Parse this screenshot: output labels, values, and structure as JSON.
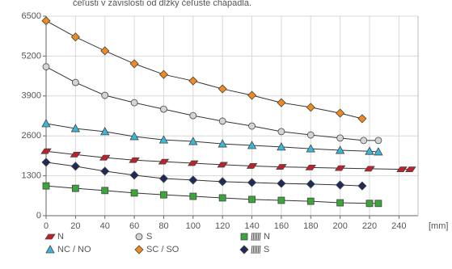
{
  "chart_data": {
    "type": "line",
    "title": "čeľusti v závislosti od dĺžky čeľuste chápadla.",
    "x_unit": "[mm]",
    "xlim": [
      0,
      253
    ],
    "xticks": [
      0,
      20,
      40,
      60,
      80,
      100,
      120,
      140,
      160,
      180,
      200,
      220,
      240
    ],
    "ylim": [
      0,
      6500
    ],
    "yticks": [
      0,
      1300,
      2600,
      3900,
      5200,
      6500
    ],
    "grid": true,
    "line_color": "#333333",
    "series": [
      {
        "name": "N",
        "color": "#c0202a",
        "marker": "parallelogram",
        "spring": false,
        "x": [
          0,
          20,
          40,
          60,
          80,
          100,
          120,
          140,
          160,
          180,
          200,
          220,
          242,
          248
        ],
        "values": [
          2100,
          1990,
          1890,
          1810,
          1760,
          1710,
          1660,
          1620,
          1590,
          1570,
          1550,
          1530,
          1510,
          1510
        ]
      },
      {
        "name": "NC / NO",
        "color": "#3ab7d8",
        "marker": "triangle",
        "spring": false,
        "x": [
          0,
          20,
          40,
          60,
          80,
          100,
          120,
          140,
          160,
          180,
          200,
          220,
          226
        ],
        "values": [
          3000,
          2840,
          2740,
          2580,
          2470,
          2420,
          2340,
          2290,
          2240,
          2180,
          2130,
          2100,
          2080
        ]
      },
      {
        "name": "S",
        "color": "#d4d4d4",
        "marker": "circle",
        "spring": false,
        "x": [
          0,
          20,
          40,
          60,
          80,
          100,
          120,
          140,
          160,
          180,
          200,
          216,
          226
        ],
        "values": [
          4850,
          4340,
          3920,
          3680,
          3470,
          3260,
          3080,
          2920,
          2740,
          2630,
          2530,
          2450,
          2450
        ]
      },
      {
        "name": "SC / SO",
        "color": "#f08a1e",
        "marker": "diamond",
        "spring": false,
        "x": [
          0,
          20,
          40,
          60,
          80,
          100,
          120,
          140,
          160,
          180,
          200,
          215
        ],
        "values": [
          6350,
          5820,
          5370,
          4950,
          4600,
          4390,
          4130,
          3920,
          3680,
          3530,
          3340,
          3160
        ]
      },
      {
        "name": "N",
        "color": "#3aa63a",
        "marker": "square",
        "spring": true,
        "x": [
          0,
          20,
          40,
          60,
          80,
          100,
          120,
          140,
          160,
          180,
          200,
          220,
          226
        ],
        "values": [
          970,
          890,
          820,
          740,
          680,
          630,
          580,
          530,
          500,
          470,
          420,
          400,
          400
        ]
      },
      {
        "name": "S",
        "color": "#1f2a5a",
        "marker": "diamond",
        "spring": true,
        "x": [
          0,
          20,
          40,
          60,
          80,
          100,
          120,
          140,
          160,
          180,
          200,
          215
        ],
        "values": [
          1740,
          1610,
          1450,
          1320,
          1210,
          1160,
          1110,
          1080,
          1050,
          1030,
          1000,
          970
        ]
      }
    ]
  }
}
